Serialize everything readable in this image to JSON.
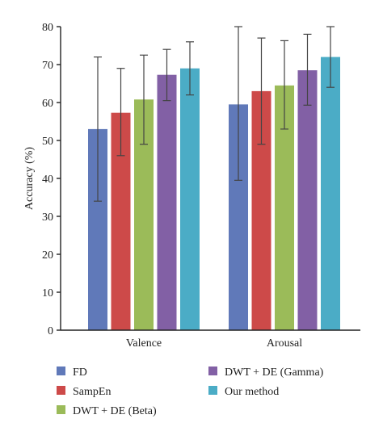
{
  "chart_data": {
    "type": "bar",
    "title": "",
    "xlabel": "",
    "ylabel": "Accuracy (%)",
    "ylim": [
      0,
      80
    ],
    "yticks": [
      0,
      10,
      20,
      30,
      40,
      50,
      60,
      70,
      80
    ],
    "grid": false,
    "legend_position": "bottom",
    "categories": [
      "Valence",
      "Arousal"
    ],
    "series": [
      {
        "name": "FD",
        "color": "#6079b9",
        "values": [
          53,
          59.5
        ],
        "error_low": [
          34,
          39.5
        ],
        "error_high": [
          72,
          80
        ]
      },
      {
        "name": "SampEn",
        "color": "#cd4a49",
        "values": [
          57.3,
          63
        ],
        "error_low": [
          46,
          49
        ],
        "error_high": [
          69,
          77
        ]
      },
      {
        "name": "DWT + DE (Beta)",
        "color": "#9bbb59",
        "values": [
          60.8,
          64.5
        ],
        "error_low": [
          49,
          53
        ],
        "error_high": [
          72.5,
          76.3
        ]
      },
      {
        "name": "DWT + DE (Gamma)",
        "color": "#8260a5",
        "values": [
          67.3,
          68.5
        ],
        "error_low": [
          60.5,
          59.3
        ],
        "error_high": [
          74,
          78
        ]
      },
      {
        "name": "Our method",
        "color": "#4bacc6",
        "values": [
          69,
          72
        ],
        "error_low": [
          62,
          64
        ],
        "error_high": [
          76,
          80
        ]
      }
    ]
  }
}
